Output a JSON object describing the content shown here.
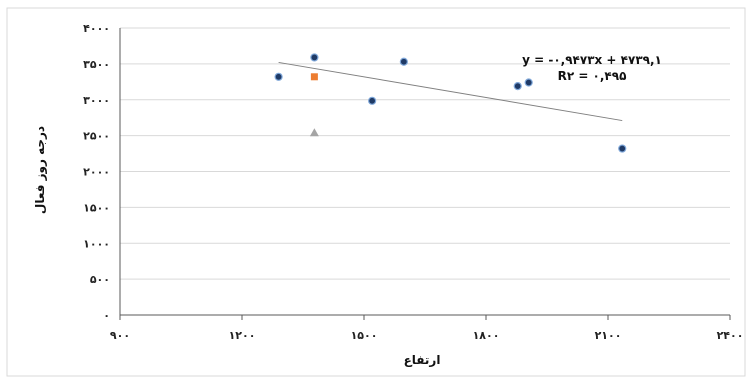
{
  "chart_data": {
    "type": "scatter",
    "title": "",
    "xlabel": "ارتفاع",
    "ylabel": "درجه روز فعال",
    "xlim": [
      900,
      2400
    ],
    "ylim": [
      0,
      4000
    ],
    "x_ticks": [
      900,
      1200,
      1500,
      1800,
      2100,
      2400
    ],
    "y_ticks": [
      0,
      500,
      1000,
      1500,
      2000,
      2500,
      3000,
      3500,
      4000
    ],
    "x_tick_labels": [
      "۹۰۰",
      "۱۲۰۰",
      "۱۵۰۰",
      "۱۸۰۰",
      "۲۱۰۰",
      "۲۴۰۰"
    ],
    "y_tick_labels": [
      "۰",
      "۵۰۰",
      "۱۰۰۰",
      "۱۵۰۰",
      "۲۰۰۰",
      "۲۵۰۰",
      "۳۰۰۰",
      "۳۵۰۰",
      "۴۰۰۰"
    ],
    "grid": {
      "horizontal": true,
      "vertical": false
    },
    "series": [
      {
        "marker": "circle",
        "color": "#1f3a66",
        "x": [
          1290,
          1378,
          1520,
          1598,
          1878,
          1905,
          2135
        ],
        "y": [
          3320,
          3590,
          2985,
          3530,
          3190,
          3240,
          2320
        ]
      },
      {
        "marker": "square",
        "color": "#ed7d31",
        "x": [
          1378
        ],
        "y": [
          3320
        ]
      },
      {
        "marker": "triangle",
        "color": "#a5a5a5",
        "x": [
          1378
        ],
        "y": [
          2540
        ]
      }
    ],
    "trendline": {
      "x": [
        1290,
        2135
      ],
      "y": [
        3520,
        2710
      ],
      "color": "#808080",
      "equation": "y = -۰,۹۴۷۳x + ۴۷۳۹,۱",
      "r_squared": "R۲ = ۰,۴۹۵"
    }
  }
}
